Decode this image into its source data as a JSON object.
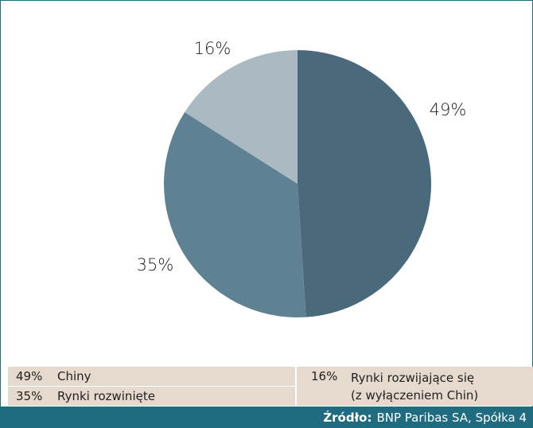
{
  "chart_data": {
    "type": "pie",
    "start_angle_deg": 0,
    "direction": "clockwise",
    "slices": [
      {
        "label": "49%",
        "value": 49,
        "color": "#4a6a7c"
      },
      {
        "label": "35%",
        "value": 35,
        "color": "#5e8294"
      },
      {
        "label": "16%",
        "value": 16,
        "color": "#abb9c2"
      }
    ]
  },
  "legend": {
    "items": [
      {
        "pct": "49%",
        "name": "Chiny"
      },
      {
        "pct": "35%",
        "name": "Rynki rozwinięte"
      },
      {
        "pct": "16%",
        "name_line1": "Rynki rozwijające się",
        "name_line2": "(z wyłączeniem Chin)"
      }
    ]
  },
  "footer": {
    "label": "Źródło:",
    "source": "BNP Paribas SA, Spółka 4"
  },
  "colors": {
    "frame": "#1f6b80",
    "legend_bg": "#e6d9cd",
    "footer_bg": "#1f6b80"
  }
}
